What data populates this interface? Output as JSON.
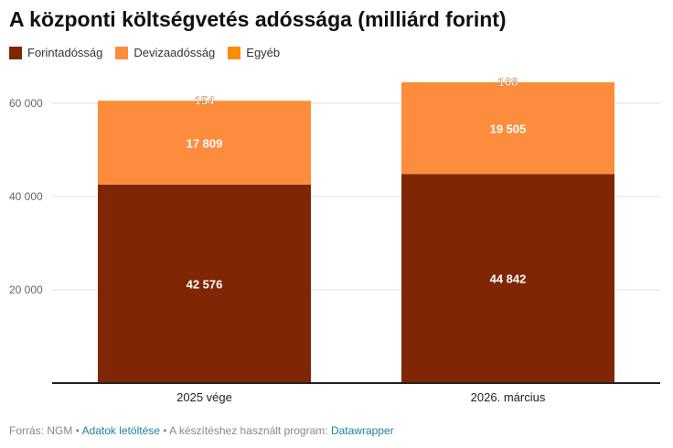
{
  "header": {
    "title": "A központi költségvetés adóssága (milliárd forint)"
  },
  "chart_data": {
    "type": "bar",
    "stacked": true,
    "categories": [
      "2025 vége",
      "2026. március"
    ],
    "series": [
      {
        "name": "Forintadósság",
        "color": "#7f2704",
        "values": [
          42576,
          44842
        ],
        "labels": [
          "42 576",
          "44 842"
        ]
      },
      {
        "name": "Devizaadósság",
        "color": "#fd8d3c",
        "values": [
          17809,
          19505
        ],
        "labels": [
          "17 809",
          "19 505"
        ]
      },
      {
        "name": "Egyéb",
        "color": "#f98c00",
        "values": [
          154,
          168
        ],
        "labels": [
          "154",
          "168"
        ]
      }
    ],
    "yticks": [
      20000,
      40000,
      60000
    ],
    "ytick_labels": [
      "20 000",
      "40 000",
      "60 000"
    ],
    "ylim": [
      0,
      66000
    ],
    "grid": true,
    "legend_position": "top-left"
  },
  "footer": {
    "source": "Forrás: NGM",
    "sep1": " • ",
    "download_link": "Adatok letöltése",
    "sep2": " • ",
    "made_with": "A készítéshez használt program: ",
    "tool_link": "Datawrapper"
  }
}
